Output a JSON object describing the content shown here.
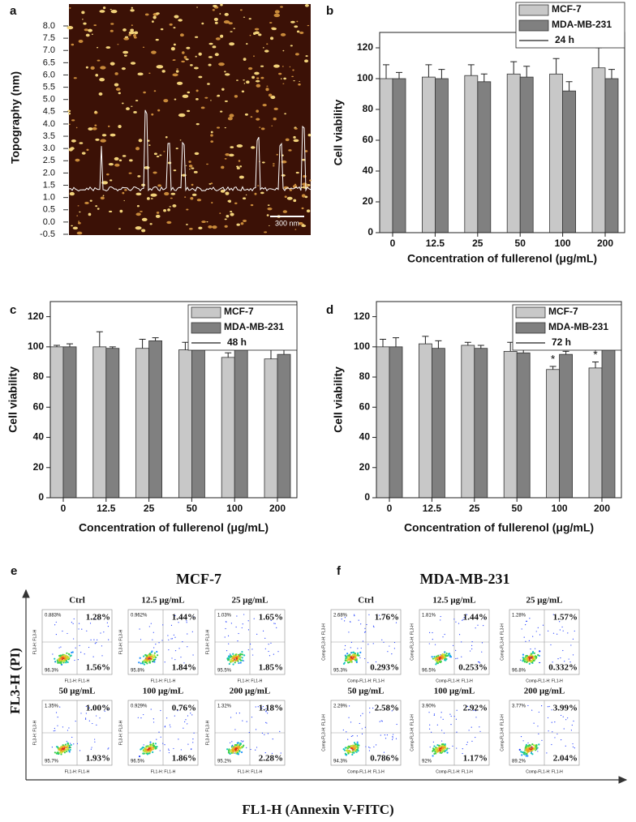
{
  "chart_data": [
    {
      "type": "image",
      "panel": "a",
      "ylabel": "Topography (nm)",
      "scale_bar": "300 nm",
      "ylim": [
        -0.5,
        8.0
      ],
      "yticks": [
        {
          "value": 8,
          "label": "8.0"
        },
        7.5,
        {
          "value": 7,
          "label": "7.0"
        },
        6.5,
        {
          "value": 6,
          "label": "6.0"
        },
        5.5,
        {
          "value": 5,
          "label": "5.0"
        },
        4.5,
        {
          "value": 4,
          "label": "4.0"
        },
        3.5,
        {
          "value": 3,
          "label": "3.0"
        },
        2.5,
        {
          "value": 2,
          "label": "2.0"
        },
        1.5,
        {
          "value": 1,
          "label": "1.0"
        },
        0.5,
        {
          "value": 0,
          "label": "0.0"
        },
        -0.5
      ]
    },
    {
      "type": "bar",
      "panel": "b",
      "xlabel": "Concentration of fullerenol (μg/mL)",
      "ylabel": "Cell viability",
      "categories": [
        "0",
        "12.5",
        "25",
        "50",
        "100",
        "200"
      ],
      "series": [
        {
          "name": "MCF-7",
          "color": "#c8c8c8",
          "values": [
            100,
            101,
            102,
            103,
            103,
            107
          ],
          "errors": [
            9,
            8,
            7,
            8,
            10,
            13
          ]
        },
        {
          "name": "MDA-MB-231",
          "color": "#808080",
          "values": [
            100,
            100,
            98,
            101,
            92,
            100
          ],
          "errors": [
            4,
            6,
            5,
            7,
            6,
            6
          ]
        }
      ],
      "legend_note": "24 h",
      "ylim": [
        0,
        130
      ],
      "yticks": [
        0,
        20,
        40,
        60,
        80,
        100,
        120
      ]
    },
    {
      "type": "bar",
      "panel": "c",
      "xlabel": "Concentration of fullerenol (μg/mL)",
      "ylabel": "Cell viability",
      "categories": [
        "0",
        "12.5",
        "25",
        "50",
        "100",
        "200"
      ],
      "series": [
        {
          "name": "MCF-7",
          "color": "#c8c8c8",
          "values": [
            100,
            100,
            99,
            98,
            93,
            92
          ],
          "errors": [
            1,
            10,
            6,
            5,
            3,
            10
          ]
        },
        {
          "name": "MDA-MB-231",
          "color": "#808080",
          "values": [
            100,
            99,
            104,
            103,
            98,
            95
          ],
          "errors": [
            2,
            1,
            2,
            3,
            2,
            4
          ]
        }
      ],
      "legend_note": "48 h",
      "ylim": [
        0,
        130
      ],
      "yticks": [
        0,
        20,
        40,
        60,
        80,
        100,
        120
      ]
    },
    {
      "type": "bar",
      "panel": "d",
      "xlabel": "Concentration of fullerenol (μg/mL)",
      "ylabel": "Cell viability",
      "categories": [
        "0",
        "12.5",
        "25",
        "50",
        "100",
        "200"
      ],
      "series": [
        {
          "name": "MCF-7",
          "color": "#c8c8c8",
          "values": [
            100,
            102,
            101,
            97,
            85,
            86
          ],
          "errors": [
            5,
            5,
            2,
            6,
            2,
            4
          ]
        },
        {
          "name": "MDA-MB-231",
          "color": "#808080",
          "values": [
            100,
            99,
            99,
            96,
            95,
            100
          ],
          "errors": [
            6,
            5,
            2,
            5,
            2,
            4
          ]
        }
      ],
      "legend_note": "72 h",
      "ylim": [
        0,
        130
      ],
      "yticks": [
        0,
        20,
        40,
        60,
        80,
        100,
        120
      ],
      "annotations": [
        {
          "text": "*",
          "category": "100",
          "series": "MCF-7"
        },
        {
          "text": "*",
          "category": "200",
          "series": "MCF-7"
        }
      ]
    }
  ],
  "flow_cytometry": {
    "y_title": "FL3-H (PI)",
    "x_title": "FL1-H (Annexin V-FITC)",
    "groups": [
      {
        "panel": "e",
        "title": "MCF-7",
        "x_axis": "FL1-H: FL1-H",
        "y_axis": "FL3-H: FL3-H",
        "plots": [
          {
            "label": "Ctrl",
            "q1": "0.883%",
            "q2": "1.28%",
            "q3": "1.56%",
            "q4": "96.3%"
          },
          {
            "label": "12.5 μg/mL",
            "q1": "0.962%",
            "q2": "1.44%",
            "q3": "1.84%",
            "q4": "95.8%"
          },
          {
            "label": "25 μg/mL",
            "q1": "1.03%",
            "q2": "1.65%",
            "q3": "1.85%",
            "q4": "95.5%"
          },
          {
            "label": "50 μg/mL",
            "q1": "1.35%",
            "q2": "1.00%",
            "q3": "1.93%",
            "q4": "95.7%"
          },
          {
            "label": "100 μg/mL",
            "q1": "0.929%",
            "q2": "0.76%",
            "q3": "1.86%",
            "q4": "96.5%"
          },
          {
            "label": "200 μg/mL",
            "q1": "1.32%",
            "q2": "1.18%",
            "q3": "2.28%",
            "q4": "95.2%"
          }
        ]
      },
      {
        "panel": "f",
        "title": "MDA-MB-231",
        "x_axis": "Comp-FL1-H: FL1-H",
        "y_axis": "Comp-FL3-H: FL3-H",
        "plots": [
          {
            "label": "Ctrl",
            "q1": "2.68%",
            "q2": "1.76%",
            "q3": "0.293%",
            "q4": "95.3%"
          },
          {
            "label": "12.5 μg/mL",
            "q1": "1.81%",
            "q2": "1.44%",
            "q3": "0.253%",
            "q4": "96.5%"
          },
          {
            "label": "25 μg/mL",
            "q1": "1.28%",
            "q2": "1.57%",
            "q3": "0.332%",
            "q4": "96.8%"
          },
          {
            "label": "50 μg/mL",
            "q1": "2.29%",
            "q2": "2.58%",
            "q3": "0.786%",
            "q4": "94.3%"
          },
          {
            "label": "100 μg/mL",
            "q1": "3.90%",
            "q2": "2.92%",
            "q3": "1.17%",
            "q4": "92%"
          },
          {
            "label": "200 μg/mL",
            "q1": "3.77%",
            "q2": "3.99%",
            "q3": "2.04%",
            "q4": "89.2%"
          }
        ]
      }
    ]
  }
}
